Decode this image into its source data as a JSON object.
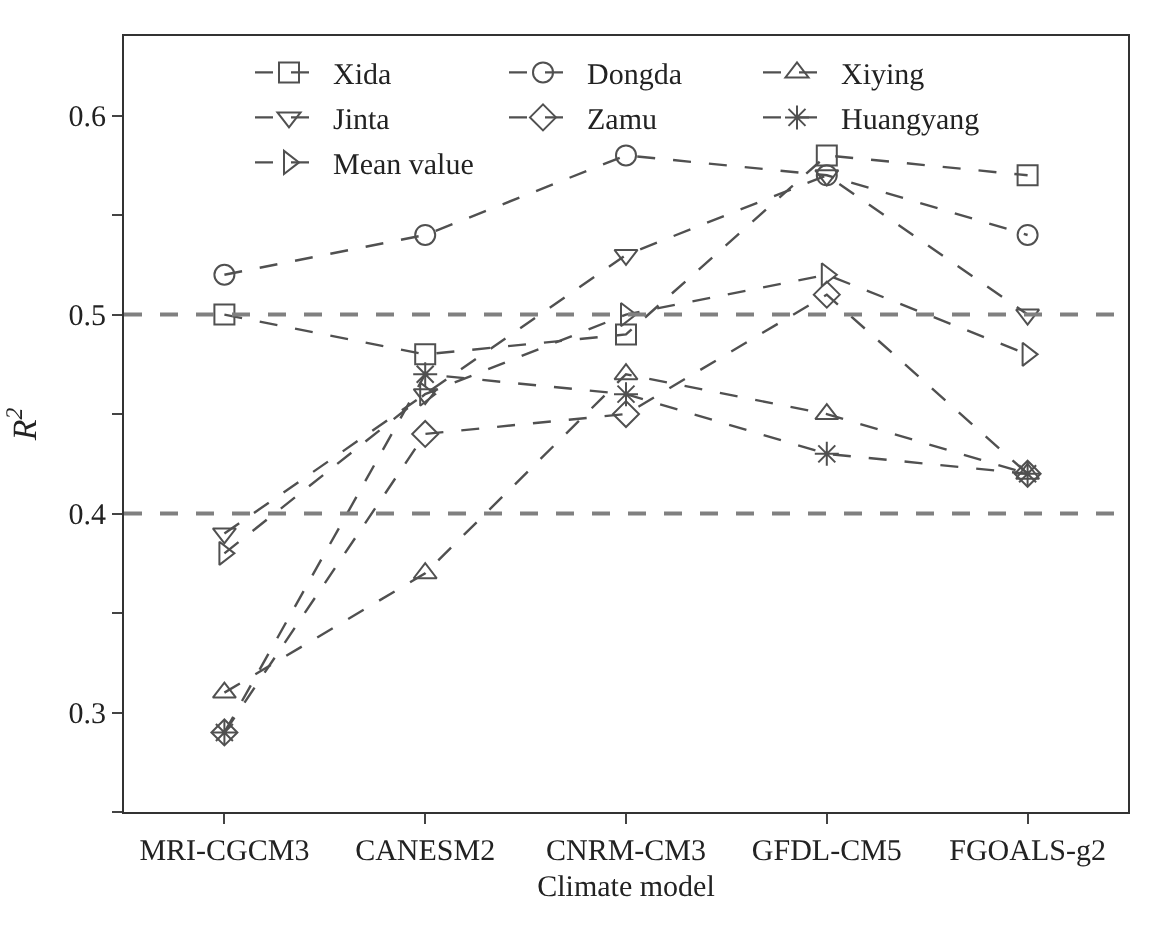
{
  "chart_data": {
    "type": "line",
    "xlabel": "Climate model",
    "ylabel": "R$^{2}$",
    "categories": [
      "MRI-CGCM3",
      "CANESM2",
      "CNRM-CM3",
      "GFDL-CM5",
      "FGOALS-g2"
    ],
    "series": [
      {
        "name": "Xida",
        "color": "#505050",
        "marker": "square",
        "values": [
          0.5,
          0.48,
          0.49,
          0.58,
          0.57
        ]
      },
      {
        "name": "Dongda",
        "color": "#505050",
        "marker": "circle",
        "values": [
          0.52,
          0.54,
          0.58,
          0.57,
          0.54
        ]
      },
      {
        "name": "Xiying",
        "color": "#505050",
        "marker": "triangle",
        "values": [
          0.31,
          0.37,
          0.47,
          0.45,
          0.42
        ]
      },
      {
        "name": "Jinta",
        "color": "#505050",
        "marker": "triangle-down",
        "values": [
          0.39,
          0.46,
          0.53,
          0.57,
          0.5
        ]
      },
      {
        "name": "Zamu",
        "color": "#505050",
        "marker": "diamond",
        "values": [
          0.29,
          0.44,
          0.45,
          0.51,
          0.42
        ]
      },
      {
        "name": "Huangyang",
        "color": "#505050",
        "marker": "cross",
        "values": [
          0.29,
          0.47,
          0.46,
          0.43,
          0.42
        ]
      },
      {
        "name": "Mean value",
        "color": "#505050",
        "marker": "triangle-right",
        "values": [
          0.38,
          0.46,
          0.5,
          0.52,
          0.48
        ]
      }
    ],
    "line_style": "dashed",
    "ylim": [
      0.25,
      0.64
    ],
    "yticks": [
      {
        "value": 0.25,
        "label": null
      },
      0.3,
      {
        "value": 0.35,
        "label": null
      },
      0.4,
      {
        "value": 0.45,
        "label": null
      },
      0.5,
      {
        "value": 0.55,
        "label": null
      },
      0.6
    ],
    "ref_lines": [
      {
        "axis": "y",
        "value": 0.4,
        "color": "#808080",
        "line_style": "dashed"
      },
      {
        "axis": "y",
        "value": 0.5,
        "color": "#808080",
        "line_style": "dashed"
      }
    ],
    "grid": false,
    "legend": "top"
  }
}
